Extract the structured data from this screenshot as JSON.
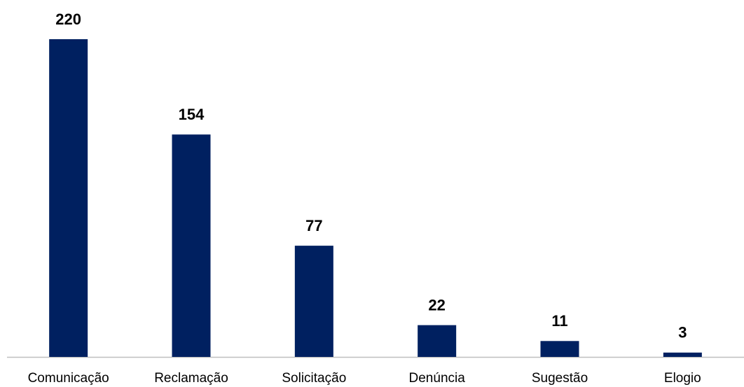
{
  "chart_data": {
    "type": "bar",
    "categories": [
      "Comunicação",
      "Reclamação",
      "Solicitação",
      "Denúncia",
      "Sugestão",
      "Elogio"
    ],
    "values": [
      220,
      154,
      77,
      22,
      11,
      3
    ],
    "color": "#002060"
  }
}
